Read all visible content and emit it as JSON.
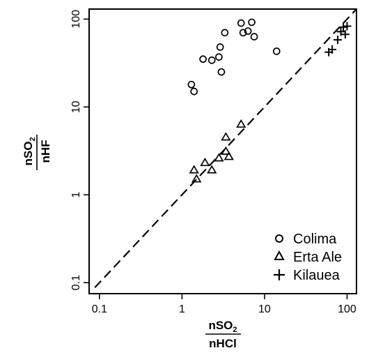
{
  "chart_data": {
    "type": "scatter",
    "x_scale": "log",
    "y_scale": "log",
    "xlim": [
      0.075,
      130
    ],
    "ylim": [
      0.075,
      130
    ],
    "x_ticks": [
      0.1,
      1,
      10,
      100
    ],
    "y_ticks": [
      0.1,
      1,
      10,
      100
    ],
    "x_tick_labels": [
      "0.1",
      "1",
      "10",
      "100"
    ],
    "y_tick_labels": [
      "0.1",
      "1",
      "10",
      "100"
    ],
    "xlabel": {
      "numerator": "nSO",
      "numerator_sub": "2",
      "denominator": "nHCl"
    },
    "ylabel": {
      "numerator": "nSO",
      "numerator_sub": "2",
      "denominator": "nHF"
    },
    "grid": false,
    "legend_position": "bottom-right",
    "reference_line": {
      "style": "dashed",
      "slope": 1,
      "description": "1:1 line"
    },
    "series": [
      {
        "name": "Colima",
        "marker": "circle",
        "points": [
          [
            1.3,
            18
          ],
          [
            1.4,
            15
          ],
          [
            1.8,
            35
          ],
          [
            2.3,
            34
          ],
          [
            2.8,
            37
          ],
          [
            2.9,
            48
          ],
          [
            3.0,
            25
          ],
          [
            3.3,
            70
          ],
          [
            5.2,
            90
          ],
          [
            5.5,
            70
          ],
          [
            6.3,
            73
          ],
          [
            7.0,
            92
          ],
          [
            7.5,
            63
          ],
          [
            14,
            43
          ]
        ]
      },
      {
        "name": "Erta Ale",
        "marker": "triangle",
        "points": [
          [
            1.4,
            1.9
          ],
          [
            1.5,
            1.5
          ],
          [
            1.9,
            2.3
          ],
          [
            2.3,
            1.9
          ],
          [
            2.8,
            2.6
          ],
          [
            3.4,
            4.5
          ],
          [
            3.4,
            3.1
          ],
          [
            3.7,
            2.7
          ],
          [
            5.2,
            6.3
          ]
        ]
      },
      {
        "name": "Kilauea",
        "marker": "plus",
        "points": [
          [
            60,
            42
          ],
          [
            66,
            45
          ],
          [
            77,
            58
          ],
          [
            84,
            72
          ],
          [
            90,
            81
          ],
          [
            95,
            67
          ],
          [
            100,
            83
          ]
        ]
      }
    ]
  }
}
